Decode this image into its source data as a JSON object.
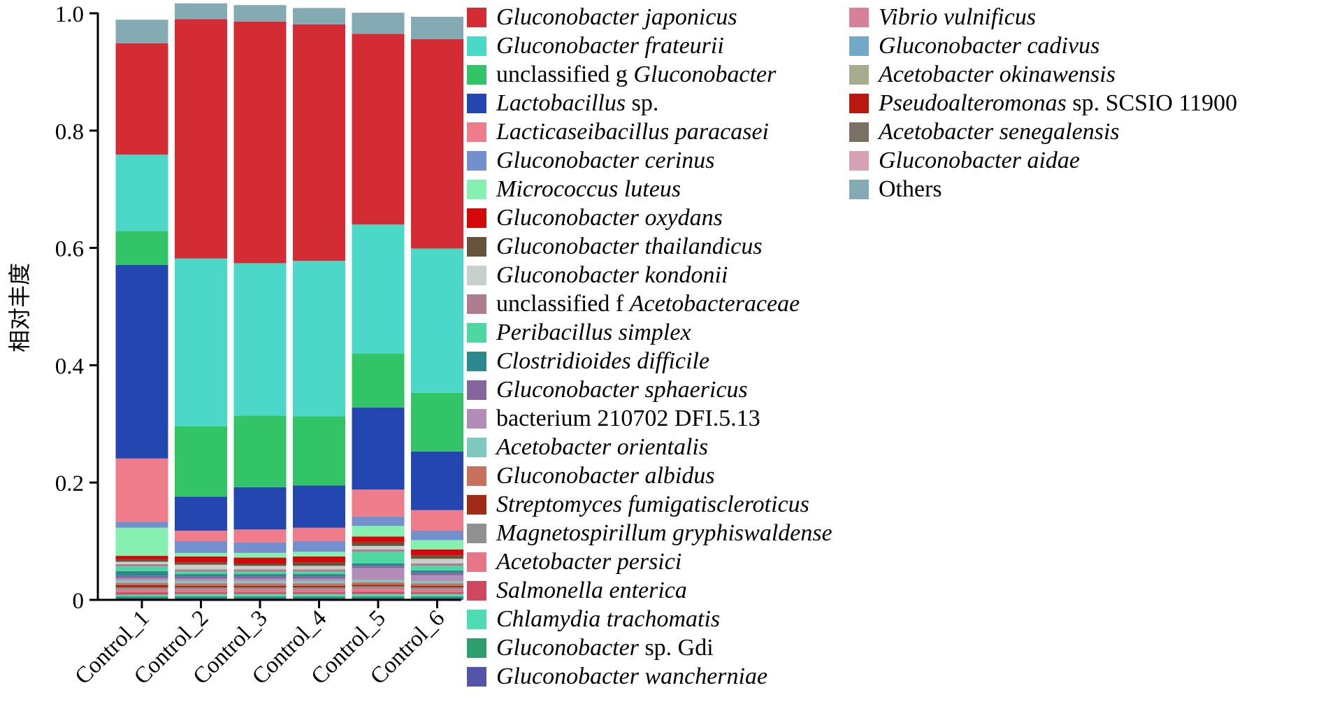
{
  "chart_data": {
    "type": "stacked-bar",
    "title": "",
    "xlabel": "",
    "ylabel": "相对丰度",
    "ylim": [
      0,
      1.0
    ],
    "yticks": [
      "0",
      "0.2",
      "0.4",
      "0.6",
      "0.8",
      "1.0"
    ],
    "categories": [
      "Control_1",
      "Control_2",
      "Control_3",
      "Control_4",
      "Control_5",
      "Control_6"
    ],
    "series": [
      {
        "name": "Gluconobacter wancherniae",
        "prefix": "",
        "italic": "Gluconobacter wancherniae",
        "suffix": "",
        "color": "#5454a8",
        "values": [
          0.003,
          0.003,
          0.003,
          0.003,
          0.003,
          0.003
        ]
      },
      {
        "name": "Gluconobacter sp. Gdi",
        "prefix": "",
        "italic": "Gluconobacter",
        "suffix": " sp. Gdi",
        "color": "#2f9e6e",
        "values": [
          0.003,
          0.003,
          0.003,
          0.003,
          0.003,
          0.003
        ]
      },
      {
        "name": "Chlamydia trachomatis",
        "prefix": "",
        "italic": "Chlamydia trachomatis",
        "suffix": "",
        "color": "#4fdcb4",
        "values": [
          0.003,
          0.004,
          0.004,
          0.004,
          0.004,
          0.004
        ]
      },
      {
        "name": "Salmonella enterica",
        "prefix": "",
        "italic": "Salmonella enterica",
        "suffix": "",
        "color": "#d04860",
        "values": [
          0.004,
          0.003,
          0.003,
          0.003,
          0.004,
          0.003
        ]
      },
      {
        "name": "Acetobacter persici",
        "prefix": "",
        "italic": "Acetobacter persici",
        "suffix": "",
        "color": "#e87688",
        "values": [
          0.004,
          0.004,
          0.004,
          0.004,
          0.005,
          0.004
        ]
      },
      {
        "name": "Magnetospirillum gryphiswaldense",
        "prefix": "",
        "italic": "Magnetospirillum gryphiswaldense",
        "suffix": "",
        "color": "#909090",
        "values": [
          0.004,
          0.004,
          0.004,
          0.004,
          0.004,
          0.004
        ]
      },
      {
        "name": "Streptomyces fumigatiscleroticus",
        "prefix": "",
        "italic": "Streptomyces fumigatiscleroticus",
        "suffix": "",
        "color": "#a02a18",
        "values": [
          0.004,
          0.003,
          0.003,
          0.003,
          0.003,
          0.003
        ]
      },
      {
        "name": "Gluconobacter albidus",
        "prefix": "",
        "italic": "Gluconobacter albidus",
        "suffix": "",
        "color": "#c8705e",
        "values": [
          0.004,
          0.004,
          0.004,
          0.004,
          0.004,
          0.004
        ]
      },
      {
        "name": "Acetobacter orientalis",
        "prefix": "",
        "italic": "Acetobacter orientalis",
        "suffix": "",
        "color": "#7ec8c0",
        "values": [
          0.004,
          0.004,
          0.004,
          0.004,
          0.004,
          0.004
        ]
      },
      {
        "name": "bacterium 210702 DFI.5.13",
        "prefix": "bacterium 210702 DFI.5.13",
        "italic": "",
        "suffix": "",
        "color": "#b48cb8",
        "values": [
          0.004,
          0.004,
          0.004,
          0.004,
          0.02,
          0.01
        ]
      },
      {
        "name": "Gluconobacter sphaericus",
        "prefix": "",
        "italic": "Gluconobacter sphaericus",
        "suffix": "",
        "color": "#86649e",
        "values": [
          0.004,
          0.004,
          0.004,
          0.004,
          0.004,
          0.004
        ]
      },
      {
        "name": "Clostridioides difficile",
        "prefix": "",
        "italic": "Clostridioides difficile",
        "suffix": "",
        "color": "#2e8890",
        "values": [
          0.008,
          0.004,
          0.004,
          0.004,
          0.004,
          0.004
        ]
      },
      {
        "name": "Peribacillus simplex",
        "prefix": "",
        "italic": "Peribacillus simplex",
        "suffix": "",
        "color": "#4cd8a0",
        "values": [
          0.008,
          0.004,
          0.004,
          0.004,
          0.02,
          0.008
        ]
      },
      {
        "name": "unclassified f Acetobacteraceae",
        "prefix": "unclassified f ",
        "italic": "Acetobacteraceae",
        "suffix": "",
        "color": "#ae7e90",
        "values": [
          0.004,
          0.004,
          0.004,
          0.004,
          0.004,
          0.004
        ]
      },
      {
        "name": "Gluconobacter kondonii",
        "prefix": "",
        "italic": "Gluconobacter kondonii",
        "suffix": "",
        "color": "#c8d0cc",
        "values": [
          0.004,
          0.008,
          0.006,
          0.006,
          0.006,
          0.008
        ]
      },
      {
        "name": "Gluconobacter thailandicus",
        "prefix": "",
        "italic": "Gluconobacter thailandicus",
        "suffix": "",
        "color": "#66543a",
        "values": [
          0.004,
          0.004,
          0.004,
          0.006,
          0.006,
          0.006
        ]
      },
      {
        "name": "Gluconobacter oxydans",
        "prefix": "",
        "italic": "Gluconobacter oxydans",
        "suffix": "",
        "color": "#d40808",
        "values": [
          0.006,
          0.01,
          0.01,
          0.01,
          0.01,
          0.01
        ]
      },
      {
        "name": "Micrococcus luteus",
        "prefix": "",
        "italic": "Micrococcus luteus",
        "suffix": "",
        "color": "#86f0b0",
        "values": [
          0.048,
          0.006,
          0.008,
          0.008,
          0.018,
          0.016
        ]
      },
      {
        "name": "Gluconobacter cerinus",
        "prefix": "",
        "italic": "Gluconobacter cerinus",
        "suffix": "",
        "color": "#7490cc",
        "values": [
          0.01,
          0.02,
          0.018,
          0.018,
          0.016,
          0.016
        ]
      },
      {
        "name": "Lacticaseibacillus paracasei",
        "prefix": "",
        "italic": "Lacticaseibacillus paracasei",
        "suffix": "",
        "color": "#ee7c8a",
        "values": [
          0.108,
          0.018,
          0.022,
          0.023,
          0.046,
          0.035
        ]
      },
      {
        "name": "Lactobacillus sp.",
        "prefix": "",
        "italic": "Lactobacillus",
        "suffix": " sp.",
        "color": "#2446b0",
        "values": [
          0.33,
          0.058,
          0.072,
          0.072,
          0.14,
          0.1
        ]
      },
      {
        "name": "unclassified g Gluconobacter",
        "prefix": "unclassified g ",
        "italic": "Gluconobacter",
        "suffix": "",
        "color": "#34c468",
        "values": [
          0.058,
          0.12,
          0.122,
          0.118,
          0.092,
          0.1
        ]
      },
      {
        "name": "Gluconobacter frateurii",
        "prefix": "",
        "italic": "Gluconobacter frateurii",
        "suffix": "",
        "color": "#4cd8c8",
        "values": [
          0.13,
          0.286,
          0.26,
          0.265,
          0.22,
          0.246
        ]
      },
      {
        "name": "Gluconobacter japonicus",
        "prefix": "",
        "italic": "Gluconobacter japonicus",
        "suffix": "",
        "color": "#d42c34",
        "values": [
          0.19,
          0.408,
          0.412,
          0.403,
          0.325,
          0.357
        ]
      },
      {
        "name": "Vibrio vulnificus",
        "prefix": "",
        "italic": "Vibrio vulnificus",
        "suffix": "",
        "color": "#d88098",
        "values": [
          0.0,
          0.0,
          0.0,
          0.0,
          0.0,
          0.0
        ]
      },
      {
        "name": "Gluconobacter cadivus",
        "prefix": "",
        "italic": "Gluconobacter cadivus",
        "suffix": "",
        "color": "#74a8c8",
        "values": [
          0.0,
          0.0,
          0.0,
          0.0,
          0.0,
          0.0
        ]
      },
      {
        "name": "Acetobacter okinawensis",
        "prefix": "",
        "italic": "Acetobacter okinawensis",
        "suffix": "",
        "color": "#a8ac8c",
        "values": [
          0.0,
          0.0,
          0.0,
          0.0,
          0.0,
          0.0
        ]
      },
      {
        "name": "Pseudoalteromonas sp. SCSIO 11900",
        "prefix": "",
        "italic": "Pseudoalteromonas",
        "suffix": " sp. SCSIO 11900",
        "color": "#b81810",
        "values": [
          0.0,
          0.0,
          0.0,
          0.0,
          0.0,
          0.0
        ]
      },
      {
        "name": "Acetobacter senegalensis",
        "prefix": "",
        "italic": "Acetobacter senegalensis",
        "suffix": "",
        "color": "#7a7064",
        "values": [
          0.0,
          0.0,
          0.0,
          0.0,
          0.0,
          0.0
        ]
      },
      {
        "name": "Gluconobacter aidae",
        "prefix": "",
        "italic": "Gluconobacter aidae",
        "suffix": "",
        "color": "#d8a0b4",
        "values": [
          0.0,
          0.0,
          0.0,
          0.0,
          0.0,
          0.0
        ]
      },
      {
        "name": "Others",
        "prefix": "Others",
        "italic": "",
        "suffix": "",
        "color": "#84aab4",
        "values": [
          0.04,
          0.027,
          0.028,
          0.028,
          0.036,
          0.038
        ]
      }
    ],
    "legend_order": [
      "Gluconobacter japonicus",
      "Gluconobacter frateurii",
      "unclassified g Gluconobacter",
      "Lactobacillus sp.",
      "Lacticaseibacillus paracasei",
      "Gluconobacter cerinus",
      "Micrococcus luteus",
      "Gluconobacter oxydans",
      "Gluconobacter thailandicus",
      "Gluconobacter kondonii",
      "unclassified f Acetobacteraceae",
      "Peribacillus simplex",
      "Clostridioides difficile",
      "Gluconobacter sphaericus",
      "bacterium 210702 DFI.5.13",
      "Acetobacter orientalis",
      "Gluconobacter albidus",
      "Streptomyces fumigatiscleroticus",
      "Magnetospirillum gryphiswaldense",
      "Acetobacter persici",
      "Salmonella enterica",
      "Chlamydia trachomatis",
      "Gluconobacter sp. Gdi",
      "Gluconobacter wancherniae",
      "Vibrio vulnificus",
      "Gluconobacter cadivus",
      "Acetobacter okinawensis",
      "Pseudoalteromonas sp. SCSIO 11900",
      "Acetobacter senegalensis",
      "Gluconobacter aidae",
      "Others"
    ],
    "legend_placement": "right"
  }
}
